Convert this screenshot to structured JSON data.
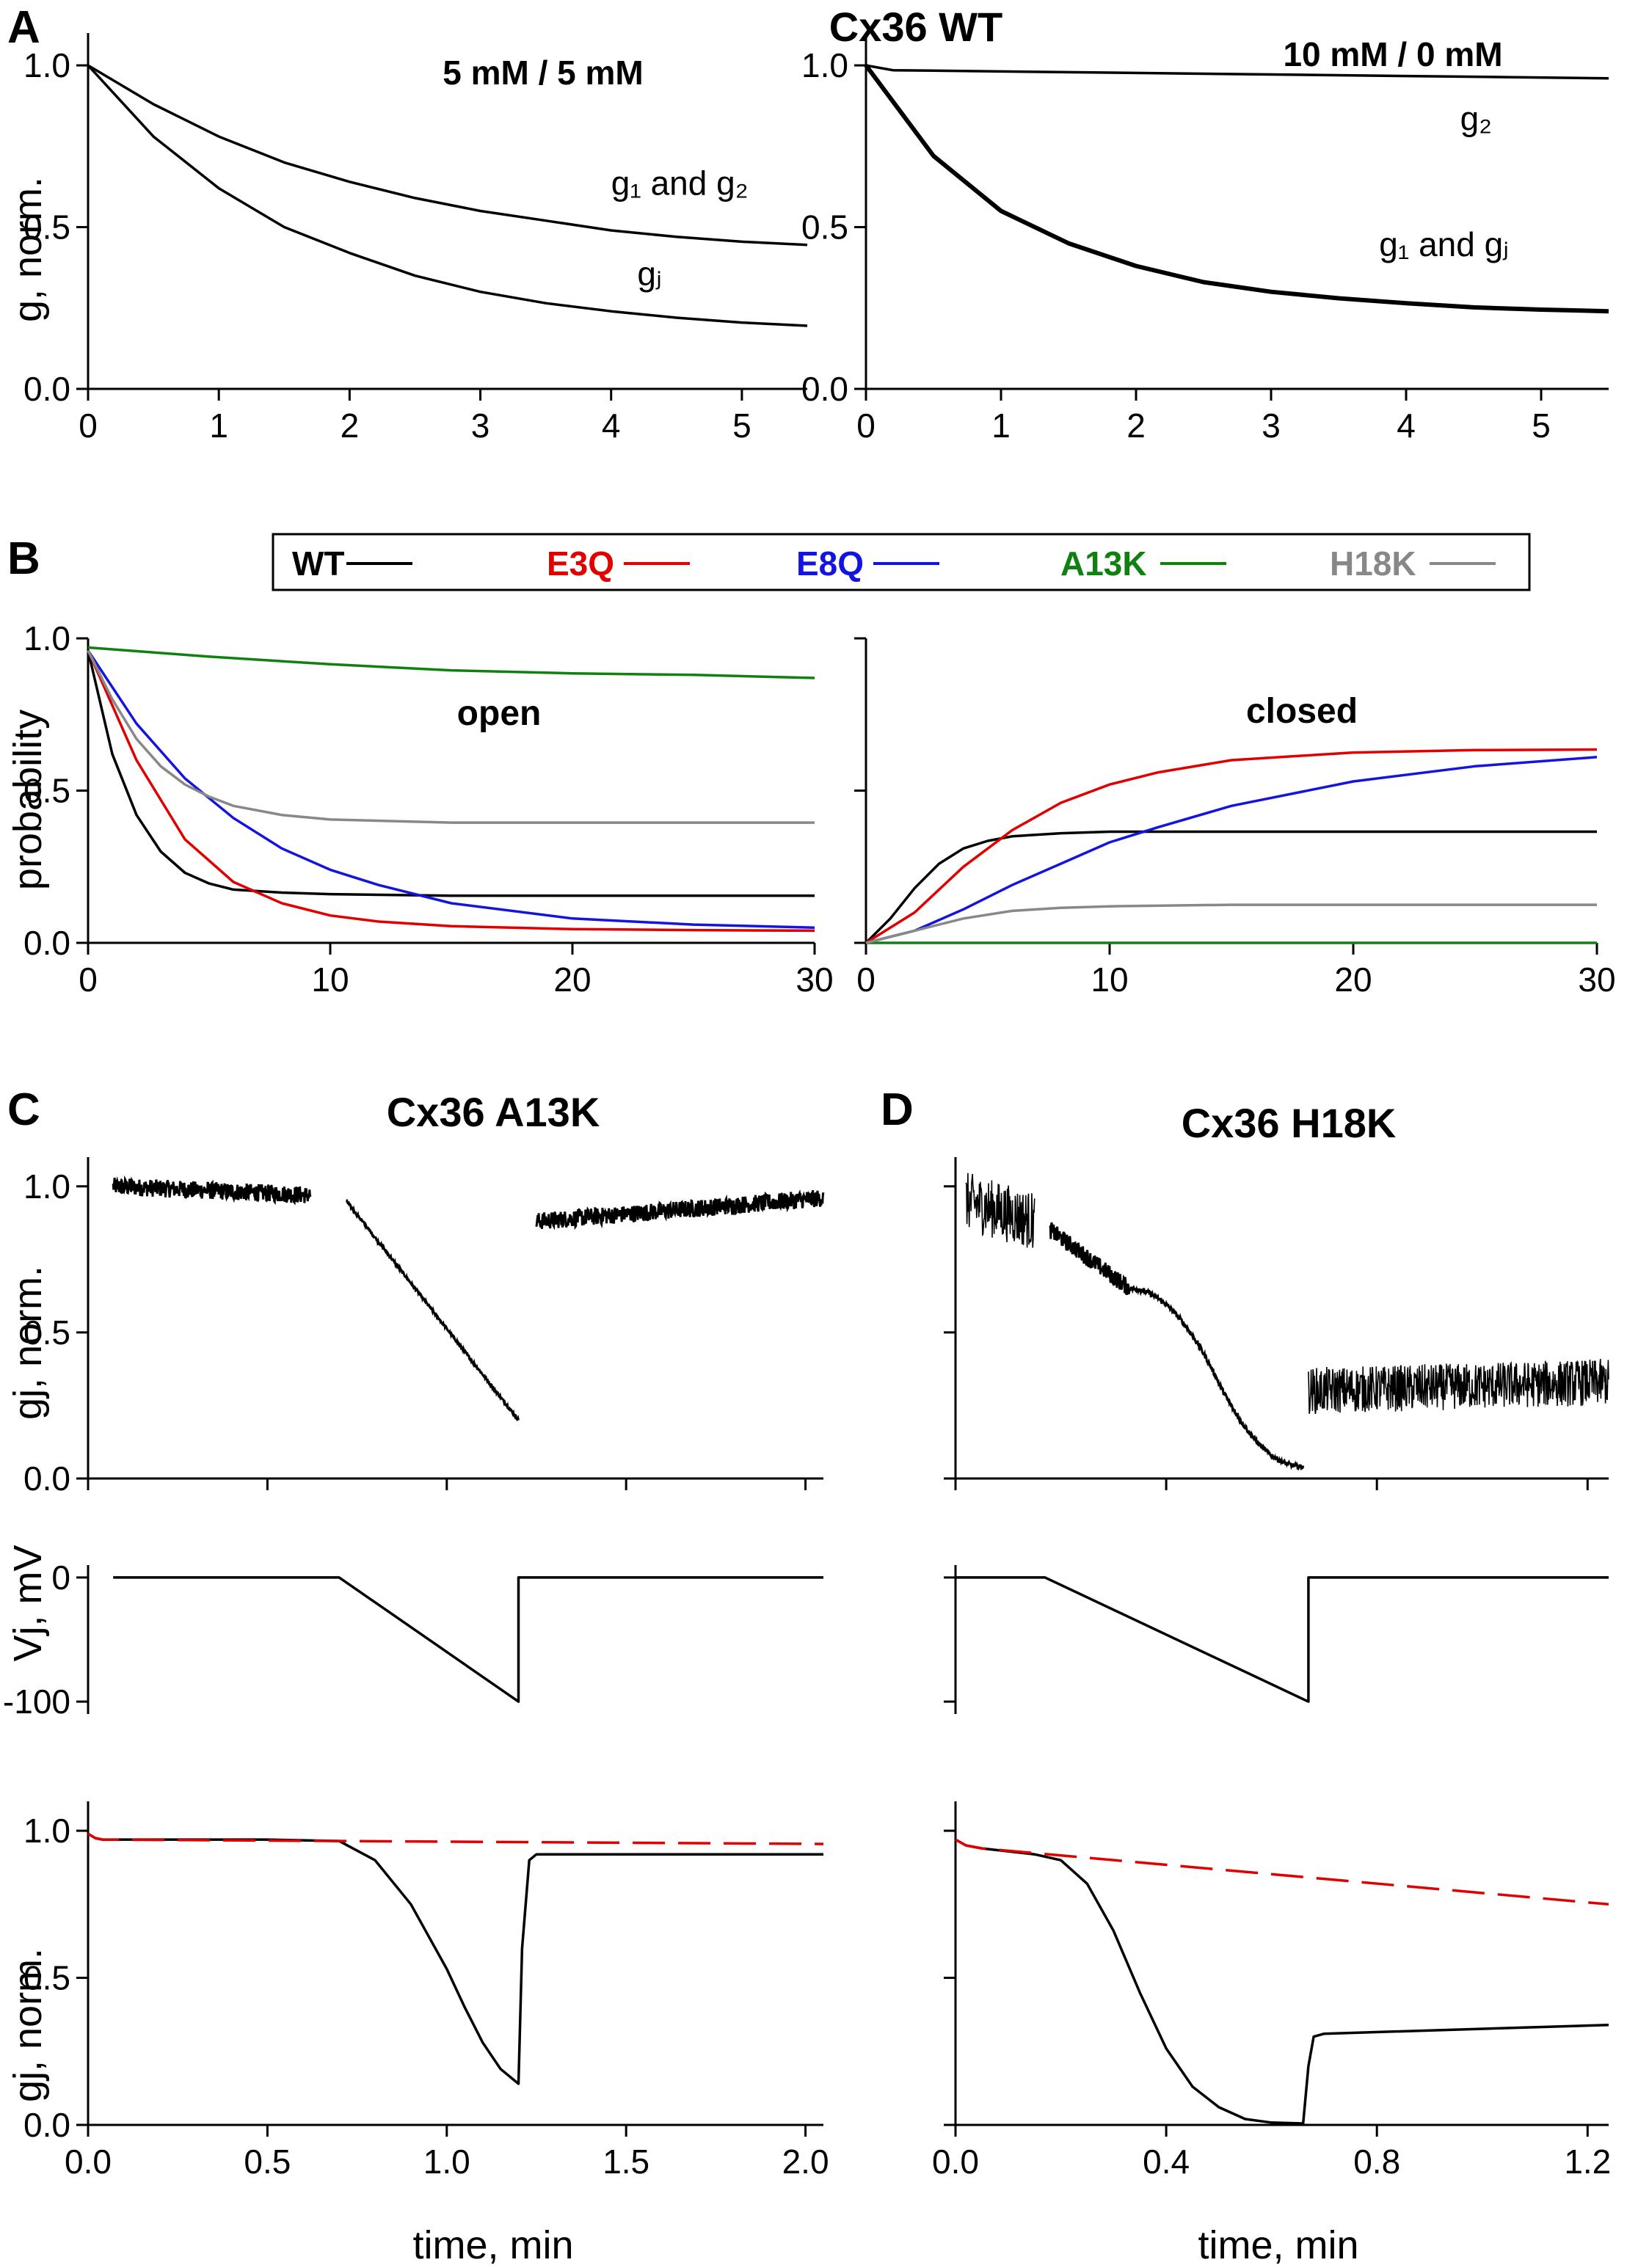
{
  "figure": {
    "panel_letters": [
      "A",
      "B",
      "C",
      "D"
    ],
    "headings": {
      "a": "Cx36 WT",
      "a_left": "5 mM / 5 mM",
      "a_right": "10 mM / 0 mM",
      "c": "Cx36 A13K",
      "d": "Cx36 H18K"
    },
    "colors": {
      "WT": "#000000",
      "E3Q": "#e00000",
      "E8Q": "#1414e0",
      "A13K": "#108010",
      "H18K": "#888888",
      "fit_dashed": "#e00000"
    }
  },
  "chart_data": [
    {
      "id": "A-left",
      "type": "line",
      "title": "5 mM / 5 mM",
      "ylabel": "g, norm.",
      "xlabel": "",
      "xlim": [
        0,
        5.5
      ],
      "ylim": [
        0,
        1.1
      ],
      "xticks": [
        0,
        1,
        2,
        3,
        4,
        5
      ],
      "yticks": [
        0.0,
        0.5,
        1.0
      ],
      "ytick_labels": [
        "0.0",
        "0.5",
        "1.0"
      ],
      "series": [
        {
          "name": "g1 and g2",
          "color": "#000000",
          "x": [
            0,
            0.5,
            1,
            1.5,
            2,
            2.5,
            3,
            3.5,
            4,
            4.5,
            5,
            5.5
          ],
          "y": [
            1.0,
            0.88,
            0.78,
            0.7,
            0.64,
            0.59,
            0.55,
            0.52,
            0.49,
            0.47,
            0.455,
            0.445
          ]
        },
        {
          "name": "gj",
          "color": "#000000",
          "x": [
            0,
            0.5,
            1,
            1.5,
            2,
            2.5,
            3,
            3.5,
            4,
            4.5,
            5,
            5.5
          ],
          "y": [
            1.0,
            0.78,
            0.62,
            0.5,
            0.42,
            0.35,
            0.3,
            0.265,
            0.24,
            0.22,
            0.205,
            0.195
          ]
        }
      ],
      "annotations": [
        {
          "text": "g₁ and g₂",
          "x": 4.0,
          "y": 0.6
        },
        {
          "text": "gⱼ",
          "x": 4.2,
          "y": 0.32
        }
      ]
    },
    {
      "id": "A-right",
      "type": "line",
      "title": "10 mM / 0 mM",
      "xlabel": "",
      "xlim": [
        0,
        5.5
      ],
      "ylim": [
        0,
        1.1
      ],
      "xticks": [
        0,
        1,
        2,
        3,
        4,
        5
      ],
      "yticks": [
        0.0,
        0.5,
        1.0
      ],
      "ytick_labels": [
        "0.0",
        "0.5",
        "1.0"
      ],
      "series": [
        {
          "name": "g2",
          "color": "#000000",
          "x": [
            0,
            0.2,
            5.5
          ],
          "y": [
            1.0,
            0.985,
            0.96
          ]
        },
        {
          "name": "g1 and gj",
          "color": "#000000",
          "x": [
            0,
            0.5,
            1,
            1.5,
            2,
            2.5,
            3,
            3.5,
            4,
            4.5,
            5,
            5.5
          ],
          "y": [
            1.0,
            0.72,
            0.55,
            0.45,
            0.38,
            0.33,
            0.3,
            0.28,
            0.265,
            0.252,
            0.245,
            0.24
          ]
        }
      ],
      "annotations": [
        {
          "text": "g₂",
          "x": 4.4,
          "y": 0.8
        },
        {
          "text": "g₁ and gⱼ",
          "x": 3.8,
          "y": 0.41
        }
      ]
    },
    {
      "id": "B-left",
      "type": "line",
      "title": "open",
      "ylabel": "probability",
      "xlabel": "",
      "xlim": [
        0,
        30
      ],
      "ylim": [
        0,
        1.0
      ],
      "xticks": [
        0,
        10,
        20,
        30
      ],
      "yticks": [
        0.0,
        0.5,
        1.0
      ],
      "ytick_labels": [
        "0.0",
        "0.5",
        "1.0"
      ],
      "series": [
        {
          "name": "WT",
          "color": "#000000",
          "x": [
            0,
            1,
            2,
            3,
            4,
            5,
            6,
            8,
            10,
            15,
            20,
            30
          ],
          "y": [
            0.96,
            0.62,
            0.42,
            0.3,
            0.23,
            0.195,
            0.175,
            0.165,
            0.16,
            0.155,
            0.155,
            0.155
          ]
        },
        {
          "name": "E3Q",
          "color": "#e00000",
          "x": [
            0,
            2,
            4,
            6,
            8,
            10,
            12,
            15,
            20,
            25,
            30
          ],
          "y": [
            0.96,
            0.6,
            0.34,
            0.2,
            0.13,
            0.09,
            0.07,
            0.055,
            0.045,
            0.042,
            0.04
          ]
        },
        {
          "name": "E8Q",
          "color": "#1414e0",
          "x": [
            0,
            2,
            4,
            6,
            8,
            10,
            12,
            15,
            20,
            25,
            30
          ],
          "y": [
            0.96,
            0.72,
            0.54,
            0.41,
            0.31,
            0.24,
            0.19,
            0.13,
            0.08,
            0.06,
            0.05
          ]
        },
        {
          "name": "A13K",
          "color": "#108010",
          "x": [
            0,
            5,
            10,
            15,
            20,
            25,
            30
          ],
          "y": [
            0.97,
            0.94,
            0.915,
            0.895,
            0.885,
            0.88,
            0.87
          ]
        },
        {
          "name": "H18K",
          "color": "#888888",
          "x": [
            0,
            1,
            2,
            3,
            4,
            5,
            6,
            8,
            10,
            15,
            20,
            30
          ],
          "y": [
            0.96,
            0.8,
            0.67,
            0.58,
            0.52,
            0.48,
            0.45,
            0.42,
            0.405,
            0.395,
            0.395,
            0.395
          ]
        }
      ],
      "legend": [
        "WT",
        "E3Q",
        "E8Q",
        "A13K",
        "H18K"
      ],
      "legend_placement": "top-center"
    },
    {
      "id": "B-right",
      "type": "line",
      "title": "closed",
      "xlabel": "",
      "xlim": [
        0,
        30
      ],
      "ylim": [
        0,
        1.0
      ],
      "xticks": [
        0,
        10,
        20,
        30
      ],
      "yticks": [
        0.0,
        0.5,
        1.0
      ],
      "ytick_labels": [
        "",
        "",
        ""
      ],
      "series": [
        {
          "name": "WT",
          "color": "#000000",
          "x": [
            0,
            1,
            2,
            3,
            4,
            5,
            6,
            8,
            10,
            15,
            20,
            30
          ],
          "y": [
            0,
            0.08,
            0.18,
            0.26,
            0.31,
            0.335,
            0.35,
            0.36,
            0.365,
            0.365,
            0.365,
            0.365
          ]
        },
        {
          "name": "E3Q",
          "color": "#e00000",
          "x": [
            0,
            2,
            4,
            6,
            8,
            10,
            12,
            15,
            20,
            25,
            30
          ],
          "y": [
            0,
            0.1,
            0.25,
            0.37,
            0.46,
            0.52,
            0.56,
            0.6,
            0.625,
            0.633,
            0.635
          ]
        },
        {
          "name": "E8Q",
          "color": "#1414e0",
          "x": [
            0,
            2,
            4,
            6,
            8,
            10,
            12,
            15,
            20,
            25,
            30
          ],
          "y": [
            0,
            0.04,
            0.11,
            0.19,
            0.26,
            0.33,
            0.38,
            0.45,
            0.53,
            0.58,
            0.61
          ]
        },
        {
          "name": "A13K",
          "color": "#108010",
          "x": [
            0,
            30
          ],
          "y": [
            0,
            0
          ]
        },
        {
          "name": "H18K",
          "color": "#888888",
          "x": [
            0,
            2,
            4,
            6,
            8,
            10,
            15,
            20,
            30
          ],
          "y": [
            0,
            0.04,
            0.08,
            0.105,
            0.115,
            0.12,
            0.125,
            0.125,
            0.125
          ]
        }
      ]
    },
    {
      "id": "C-top",
      "type": "scatter",
      "title": "Cx36 A13K",
      "ylabel": "gj, norm.",
      "xlim": [
        0,
        2.05
      ],
      "ylim": [
        0,
        1.1
      ],
      "xticks": [
        0.0,
        0.5,
        1.0,
        1.5,
        2.0
      ],
      "yticks": [
        0.0,
        0.5,
        1.0
      ],
      "ytick_labels": [
        "0.0",
        "0.5",
        "1.0"
      ],
      "segments": [
        {
          "x0": 0.07,
          "x1": 0.62,
          "y0": 1.0,
          "y1": 0.97,
          "noise": 0.03
        },
        {
          "x0": 0.72,
          "x1": 1.2,
          "y0": 0.95,
          "y1": 0.2,
          "noise": 0.005
        },
        {
          "x0": 1.25,
          "x1": 2.05,
          "y0": 0.88,
          "y1": 0.96,
          "noise": 0.03
        }
      ]
    },
    {
      "id": "C-mid",
      "type": "line",
      "ylabel": "Vj, mV",
      "xlim": [
        0,
        2.05
      ],
      "ylim": [
        -110,
        10
      ],
      "yticks": [
        -100,
        0
      ],
      "ytick_labels": [
        "-100",
        "0"
      ],
      "series": [
        {
          "name": "Vj",
          "color": "#000000",
          "x": [
            0.07,
            0.7,
            1.2,
            1.2,
            2.05
          ],
          "y": [
            0,
            0,
            -100,
            0,
            0
          ]
        }
      ]
    },
    {
      "id": "C-bottom",
      "type": "line",
      "ylabel": "gj, norm.",
      "xlabel": "time, min",
      "xlim": [
        0,
        2.05
      ],
      "ylim": [
        0,
        1.1
      ],
      "xticks": [
        0.0,
        0.5,
        1.0,
        1.5,
        2.0
      ],
      "xtick_labels": [
        "0.0",
        "0.5",
        "1.0",
        "1.5",
        "2.0"
      ],
      "yticks": [
        0.0,
        0.5,
        1.0
      ],
      "ytick_labels": [
        "0.0",
        "0.5",
        "1.0"
      ],
      "series": [
        {
          "name": "gj",
          "color": "#000000",
          "x": [
            0.0,
            0.02,
            0.04,
            0.2,
            0.5,
            0.7,
            0.8,
            0.9,
            1.0,
            1.05,
            1.1,
            1.15,
            1.2,
            1.21,
            1.23,
            1.25,
            2.05
          ],
          "y": [
            0.99,
            0.975,
            0.97,
            0.97,
            0.97,
            0.965,
            0.9,
            0.75,
            0.53,
            0.4,
            0.28,
            0.19,
            0.14,
            0.6,
            0.9,
            0.92,
            0.92
          ]
        },
        {
          "name": "fit",
          "color": "#e00000",
          "dashed": true,
          "x": [
            0.0,
            0.02,
            0.04,
            2.05
          ],
          "y": [
            0.99,
            0.975,
            0.97,
            0.955
          ]
        }
      ]
    },
    {
      "id": "D-top",
      "type": "scatter",
      "title": "Cx36 H18K",
      "xlim": [
        0,
        1.24
      ],
      "ylim": [
        0,
        1.1
      ],
      "xticks": [
        0.0,
        0.4,
        0.8,
        1.2
      ],
      "yticks": [
        0.0,
        0.5,
        1.0
      ],
      "ytick_labels": [
        "",
        "",
        ""
      ],
      "segments": [
        {
          "x0": 0.02,
          "x1": 0.15,
          "y0": 0.95,
          "y1": 0.88,
          "noise": 0.1
        },
        {
          "x0": 0.18,
          "x1": 0.33,
          "y0": 0.85,
          "y1": 0.65,
          "noise": 0.03
        },
        {
          "x0": 0.33,
          "x1": 0.66,
          "y0": 0.65,
          "y1": 0.04,
          "noise": 0.008
        },
        {
          "x0": 0.67,
          "x1": 1.24,
          "y0": 0.3,
          "y1": 0.33,
          "noise": 0.08
        }
      ]
    },
    {
      "id": "D-mid",
      "type": "line",
      "xlim": [
        0,
        1.24
      ],
      "ylim": [
        -110,
        10
      ],
      "yticks": [
        -100,
        0
      ],
      "ytick_labels": [
        "",
        ""
      ],
      "series": [
        {
          "name": "Vj",
          "color": "#000000",
          "x": [
            0.0,
            0.17,
            0.67,
            0.67,
            1.24
          ],
          "y": [
            0,
            0,
            -100,
            0,
            0
          ]
        }
      ]
    },
    {
      "id": "D-bottom",
      "type": "line",
      "xlabel": "time, min",
      "xlim": [
        0,
        1.24
      ],
      "ylim": [
        0,
        1.1
      ],
      "xticks": [
        0.0,
        0.4,
        0.8,
        1.2
      ],
      "xtick_labels": [
        "0.0",
        "0.4",
        "0.8",
        "1.2"
      ],
      "yticks": [
        0.0,
        0.5,
        1.0
      ],
      "ytick_labels": [
        "",
        "",
        ""
      ],
      "series": [
        {
          "name": "gj",
          "color": "#000000",
          "x": [
            0.0,
            0.02,
            0.05,
            0.15,
            0.2,
            0.25,
            0.3,
            0.35,
            0.4,
            0.45,
            0.5,
            0.55,
            0.6,
            0.66,
            0.67,
            0.68,
            0.7,
            1.24
          ],
          "y": [
            0.97,
            0.95,
            0.94,
            0.92,
            0.9,
            0.82,
            0.66,
            0.45,
            0.26,
            0.13,
            0.06,
            0.02,
            0.008,
            0.005,
            0.2,
            0.3,
            0.31,
            0.34
          ]
        },
        {
          "name": "fit",
          "color": "#e00000",
          "dashed": true,
          "x": [
            0.0,
            0.02,
            0.05,
            1.24
          ],
          "y": [
            0.97,
            0.95,
            0.94,
            0.75
          ]
        }
      ]
    }
  ]
}
